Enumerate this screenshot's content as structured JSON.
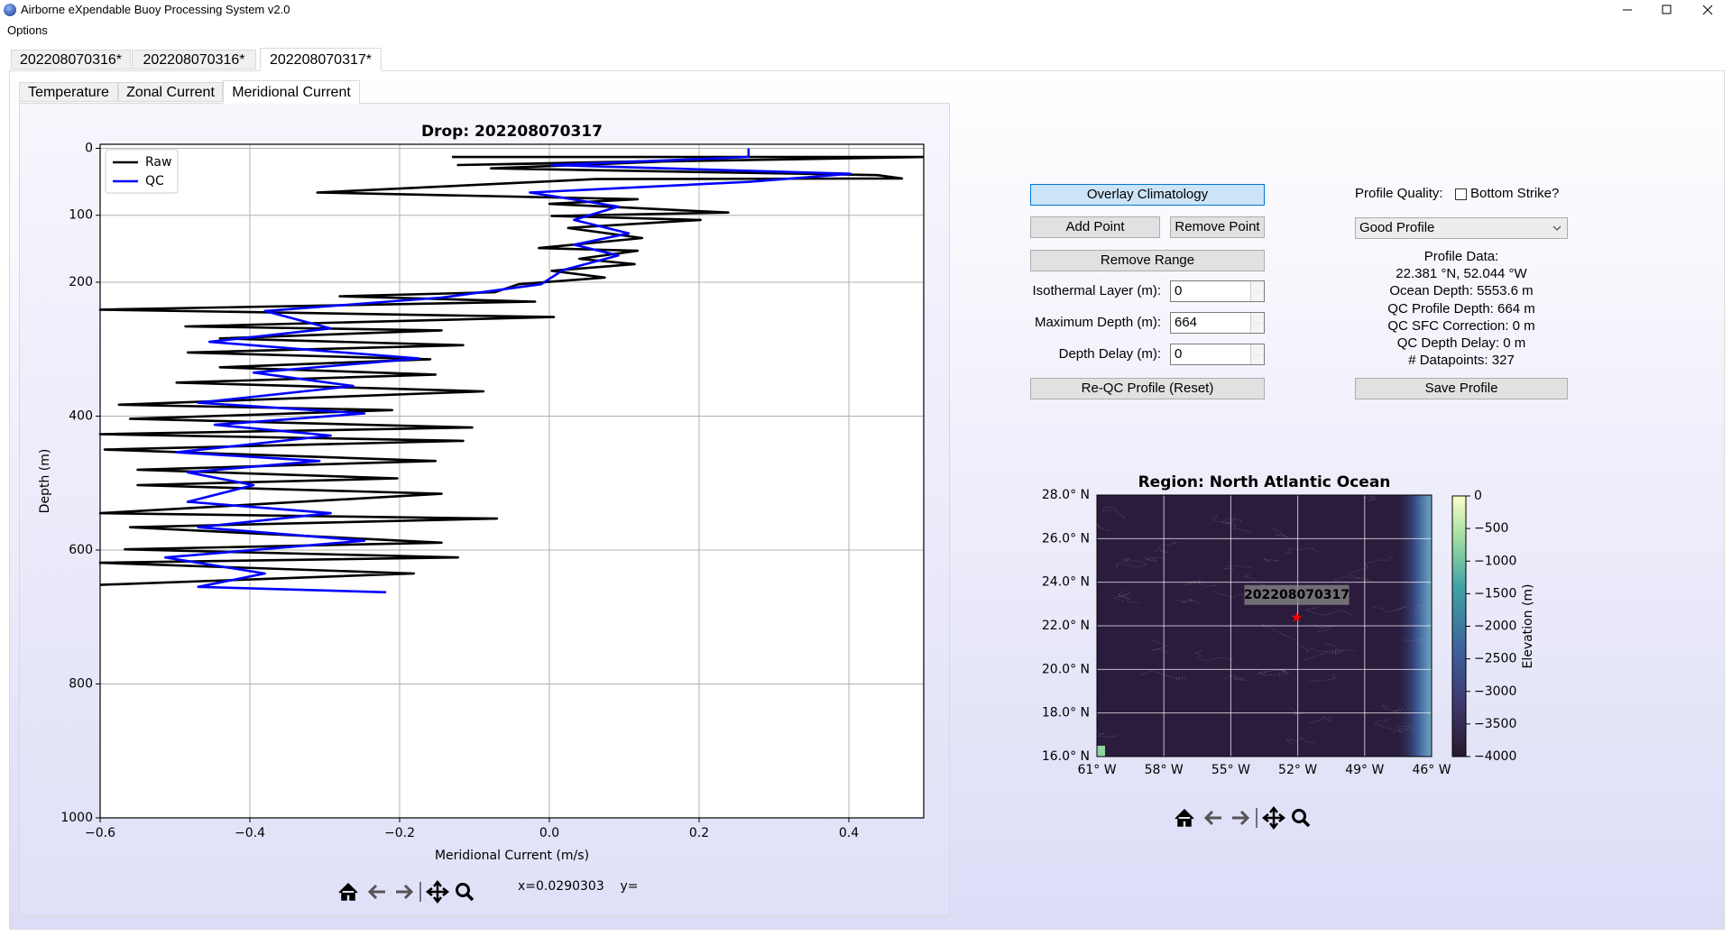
{
  "window": {
    "title": "Airborne eXpendable Buoy Processing System v2.0",
    "menu": [
      "Options"
    ]
  },
  "drop_tabs": [
    "202208070316*",
    "202208070316*",
    "202208070317*"
  ],
  "plot_tabs": [
    "Temperature",
    "Zonal Current",
    "Meridional Current"
  ],
  "status": "x=0.0290303    y=",
  "controls": {
    "buttons": [
      "Overlay Climatology",
      "Add Point",
      "Remove Point",
      "Remove Range",
      "Re-QC Profile (Reset)",
      "Save Profile"
    ],
    "fields": [
      {
        "label": "Isothermal Layer (m):",
        "value": 0
      },
      {
        "label": "Maximum Depth (m):",
        "value": 664
      },
      {
        "label": "Depth Delay (m):",
        "value": 0
      }
    ],
    "quality_label": "Profile Quality:",
    "checkbox": "Bottom Strike?",
    "dropdown": "Good Profile",
    "profile_data": [
      "Profile Data:",
      "22.381 °N, 52.044 °W",
      "Ocean Depth: 5553.6 m",
      "QC Profile Depth: 664 m",
      "QC SFC Correction: 0 m",
      "QC Depth Delay: 0 m",
      "# Datapoints: 327"
    ]
  },
  "chart_data": [
    {
      "type": "line",
      "title": "Drop: 202208070317",
      "xlabel": "Meridional Current (m/s)",
      "ylabel": "Depth (m)",
      "xlim": [
        -0.6,
        0.5
      ],
      "ylim": [
        1000,
        -6
      ],
      "xticks": [
        {
          "value": -0.6,
          "label": "−0.6"
        },
        {
          "value": -0.4,
          "label": "−0.4"
        },
        {
          "value": -0.2,
          "label": "−0.2"
        },
        {
          "value": 0,
          "label": "0.0"
        },
        0.2,
        0.4
      ],
      "yticks": [
        0,
        100,
        200,
        400,
        600,
        800,
        1000
      ],
      "grid": true,
      "legend": "upper left",
      "series": [
        {
          "name": "Raw",
          "color": "#000000",
          "x": [
            -0.13,
            0.499,
            -0.122,
            0.192,
            -0.078,
            0.438,
            0.471,
            0.062,
            -0.31,
            0.118,
            0,
            0.239,
            0.003,
            0.202,
            0.025,
            0.124,
            -0.014,
            0.118,
            0.04,
            0.114,
            0.003,
            0.074,
            -0.041,
            -0.073,
            -0.28,
            -0.019,
            -0.6,
            0.006,
            -0.486,
            -0.144,
            -0.44,
            -0.115,
            -0.483,
            -0.159,
            -0.44,
            -0.152,
            -0.498,
            -0.088,
            -0.575,
            -0.21,
            -0.56,
            -0.103,
            -0.6,
            -0.115,
            -0.594,
            -0.152,
            -0.55,
            -0.203,
            -0.55,
            -0.144,
            -0.6,
            -0.07,
            -0.56,
            -0.144,
            -0.567,
            -0.122,
            -0.6,
            -0.181,
            -0.6
          ],
          "values": [
            13,
            13,
            25,
            18,
            30,
            40,
            45,
            46,
            66,
            76,
            83,
            96,
            101,
            107,
            119,
            134,
            149,
            153,
            165,
            173,
            183,
            193,
            203,
            215,
            221,
            229,
            241,
            252,
            266,
            272,
            284,
            294,
            305,
            315,
            327,
            338,
            350,
            363,
            383,
            391,
            404,
            417,
            427,
            437,
            450,
            467,
            480,
            493,
            503,
            516,
            545,
            553,
            566,
            589,
            599,
            611,
            619,
            635,
            652
          ]
        },
        {
          "name": "QC",
          "color": "#0000ff",
          "x": [
            0.266,
            0.266,
            0.003,
            0.402,
            0.268,
            -0.026,
            0.092,
            0.033,
            0.106,
            0.033,
            0.092,
            0.018,
            -0.011,
            -0.144,
            -0.38,
            -0.292,
            -0.454,
            -0.174,
            -0.395,
            -0.262,
            -0.469,
            -0.247,
            -0.447,
            -0.292,
            -0.498,
            -0.307,
            -0.483,
            -0.395,
            -0.483,
            -0.292,
            -0.469,
            -0.247,
            -0.513,
            -0.38,
            -0.469,
            -0.218
          ],
          "values": [
            0,
            13,
            25,
            38,
            50,
            66,
            87,
            107,
            127,
            144,
            160,
            182,
            203,
            223,
            243,
            269,
            289,
            314,
            335,
            355,
            380,
            396,
            413,
            429,
            454,
            467,
            484,
            503,
            528,
            545,
            566,
            586,
            611,
            635,
            655,
            663
          ]
        }
      ]
    },
    {
      "type": "map",
      "title": "Region: North Atlantic Ocean",
      "xlim": [
        -61,
        -46
      ],
      "ylim": [
        16,
        28
      ],
      "xticks": [
        {
          "value": -61,
          "label": "61° W"
        },
        {
          "value": -58,
          "label": "58° W"
        },
        {
          "value": -55,
          "label": "55° W"
        },
        {
          "value": -52,
          "label": "52° W"
        },
        {
          "value": -49,
          "label": "49° W"
        },
        {
          "value": -46,
          "label": "46° W"
        }
      ],
      "yticks": [
        {
          "value": 16,
          "label": "16.0° N"
        },
        {
          "value": 18,
          "label": "18.0° N"
        },
        {
          "value": 20,
          "label": "20.0° N"
        },
        {
          "value": 22,
          "label": "22.0° N"
        },
        {
          "value": 24,
          "label": "24.0° N"
        },
        {
          "value": 26,
          "label": "26.0° N"
        },
        {
          "value": 28,
          "label": "28.0° N"
        }
      ],
      "grid": true,
      "points": [
        {
          "label": "202208070317",
          "lon": -52.044,
          "lat": 22.381,
          "color": "#ff0000"
        }
      ],
      "colorbar": {
        "label": "Elevation (m)",
        "clim": [
          -4000,
          0
        ],
        "ticks": [
          0,
          {
            "value": -500,
            "label": "−500"
          },
          {
            "value": -1000,
            "label": "−1000"
          },
          {
            "value": -1500,
            "label": "−1500"
          },
          {
            "value": -2000,
            "label": "−2000"
          },
          {
            "value": -2500,
            "label": "−2500"
          },
          {
            "value": -3000,
            "label": "−3000"
          },
          {
            "value": -3500,
            "label": "−3500"
          },
          {
            "value": -4000,
            "label": "−4000"
          }
        ]
      }
    }
  ]
}
